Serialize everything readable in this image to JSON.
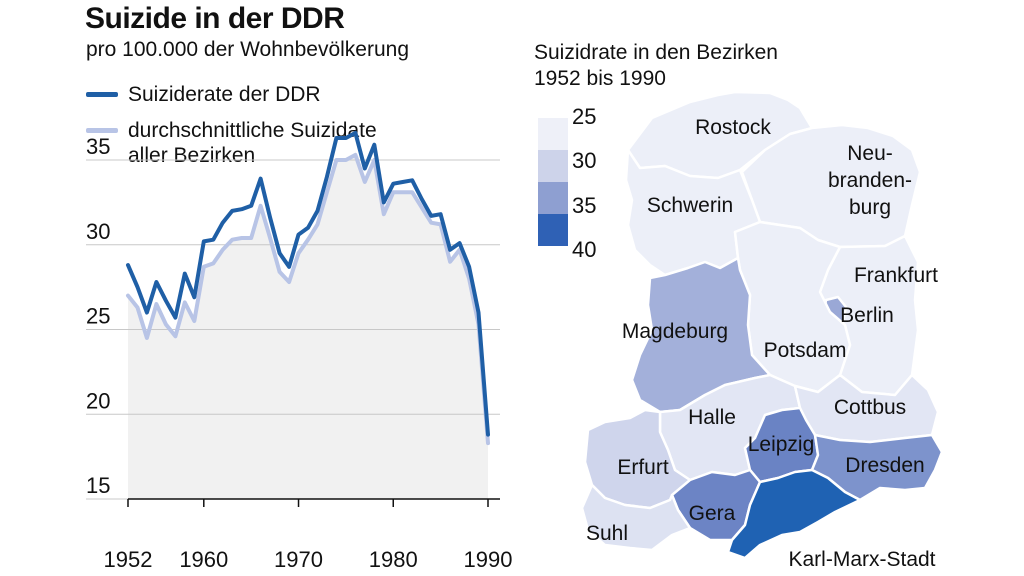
{
  "header": {
    "title": "Suizide in der DDR",
    "subtitle": "pro 100.000 der Wohnbevölkerung"
  },
  "legend": {
    "items": [
      {
        "label": "Suiziderate der DDR",
        "color": "#1f5fa6"
      },
      {
        "label": "durchschnittliche Suizidate\naller Bezirken",
        "color": "#b8c4e6"
      }
    ]
  },
  "chart_data": {
    "type": "line",
    "title": "Suizide in der DDR",
    "subtitle": "pro 100.000 der Wohnbevölkerung",
    "xlim": [
      1952,
      1990
    ],
    "ylim": [
      15,
      37
    ],
    "x_ticks": [
      1952,
      1960,
      1970,
      1980,
      1990
    ],
    "y_ticks": [
      15,
      20,
      25,
      30,
      35
    ],
    "grid": "horizontal",
    "legend_position": "top-left",
    "series": [
      {
        "name": "Suiziderate der DDR",
        "color": "#1f5fa6",
        "x": [
          1952,
          1953,
          1954,
          1955,
          1956,
          1957,
          1958,
          1959,
          1960,
          1961,
          1962,
          1963,
          1964,
          1965,
          1966,
          1967,
          1968,
          1969,
          1970,
          1971,
          1972,
          1973,
          1974,
          1975,
          1976,
          1977,
          1978,
          1979,
          1980,
          1981,
          1982,
          1983,
          1984,
          1985,
          1986,
          1987,
          1988,
          1989,
          1990
        ],
        "y": [
          28.8,
          27.5,
          26.0,
          27.8,
          26.7,
          25.7,
          28.3,
          26.9,
          30.2,
          30.3,
          31.3,
          32.0,
          32.1,
          32.3,
          33.9,
          31.6,
          29.5,
          28.7,
          30.6,
          31.0,
          32.0,
          34.0,
          36.3,
          36.3,
          36.6,
          34.5,
          35.9,
          32.5,
          33.6,
          33.7,
          33.8,
          32.7,
          31.7,
          31.8,
          29.7,
          30.1,
          28.7,
          26.0,
          18.8
        ]
      },
      {
        "name": "durchschnittliche Suizidate aller Bezirken",
        "color": "#b8c4e6",
        "x": [
          1952,
          1953,
          1954,
          1955,
          1956,
          1957,
          1958,
          1959,
          1960,
          1961,
          1962,
          1963,
          1964,
          1965,
          1966,
          1967,
          1968,
          1969,
          1970,
          1971,
          1972,
          1973,
          1974,
          1975,
          1976,
          1977,
          1978,
          1979,
          1980,
          1981,
          1982,
          1983,
          1984,
          1985,
          1986,
          1987,
          1988,
          1989,
          1990
        ],
        "y": [
          27.0,
          26.3,
          24.5,
          26.5,
          25.3,
          24.6,
          26.6,
          25.5,
          28.7,
          28.9,
          29.7,
          30.3,
          30.4,
          30.4,
          32.3,
          30.4,
          28.4,
          27.8,
          29.5,
          30.3,
          31.2,
          33.1,
          35.0,
          35.0,
          35.3,
          33.7,
          35.0,
          31.8,
          33.1,
          33.1,
          33.1,
          32.2,
          31.3,
          31.2,
          29.0,
          29.7,
          28.0,
          25.3,
          18.3
        ]
      }
    ]
  },
  "map": {
    "title": "Suizidrate in den Bezirken\n1952 bis 1990",
    "scale": [
      {
        "label": "25",
        "color": "#eef0f8"
      },
      {
        "label": "30",
        "color": "#cdd3ea"
      },
      {
        "label": "35",
        "color": "#8e9fd1"
      },
      {
        "label": "40",
        "color": "#2f61b5"
      }
    ],
    "regions": [
      {
        "key": "rostock",
        "label": "Rostock",
        "color": "#eceff8"
      },
      {
        "key": "neubrandenburg",
        "label": "Neu-\nbranden-\nburg",
        "color": "#eceff8"
      },
      {
        "key": "schwerin",
        "label": "Schwerin",
        "color": "#eceff8"
      },
      {
        "key": "frankfurt",
        "label": "Frankfurt",
        "color": "#eceff8"
      },
      {
        "key": "berlin",
        "label": "Berlin",
        "color": "#9aa8d6"
      },
      {
        "key": "magdeburg",
        "label": "Magdeburg",
        "color": "#a3b0da"
      },
      {
        "key": "potsdam",
        "label": "Potsdam",
        "color": "#eceff8"
      },
      {
        "key": "halle",
        "label": "Halle",
        "color": "#e2e6f4"
      },
      {
        "key": "cottbus",
        "label": "Cottbus",
        "color": "#e2e6f4"
      },
      {
        "key": "erfurt",
        "label": "Erfurt",
        "color": "#cfd5ec"
      },
      {
        "key": "leipzig",
        "label": "Leipzig",
        "color": "#6a83c4"
      },
      {
        "key": "dresden",
        "label": "Dresden",
        "color": "#7d93cc"
      },
      {
        "key": "gera",
        "label": "Gera",
        "color": "#6c84c5"
      },
      {
        "key": "suhl",
        "label": "Suhl",
        "color": "#dde2f2"
      },
      {
        "key": "karl-marx-stadt",
        "label": "Karl-Marx-Stadt",
        "color": "#1f62b3"
      }
    ]
  }
}
